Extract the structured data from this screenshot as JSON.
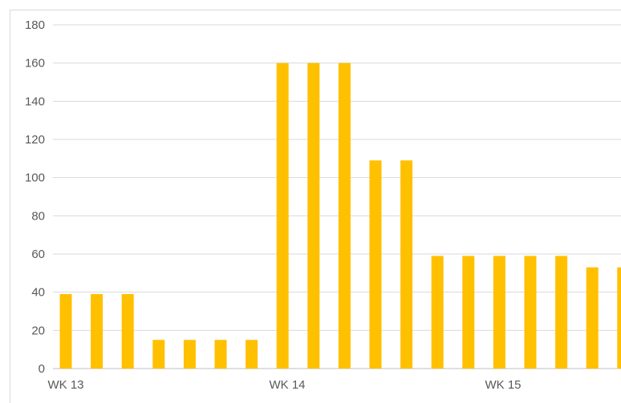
{
  "chart_data": {
    "type": "bar",
    "title": "",
    "xlabel": "",
    "ylabel": "",
    "ylim": [
      0,
      180
    ],
    "yticks": [
      0,
      20,
      40,
      60,
      80,
      100,
      120,
      140,
      160,
      180
    ],
    "grid": true,
    "legend": "none",
    "bar_color": "#FFC000",
    "categories": [
      "WK 13",
      "",
      "",
      "",
      "",
      "",
      "",
      "WK 14",
      "",
      "",
      "",
      "",
      "",
      "WK 15",
      "",
      "",
      "",
      "",
      ""
    ],
    "values": [
      39,
      39,
      39,
      15,
      15,
      15,
      15,
      160,
      160,
      160,
      109,
      109,
      59,
      59,
      59,
      59,
      59,
      53,
      53
    ],
    "x_tick_labels": [
      "WK 13",
      "WK 14",
      "WK 15"
    ]
  }
}
